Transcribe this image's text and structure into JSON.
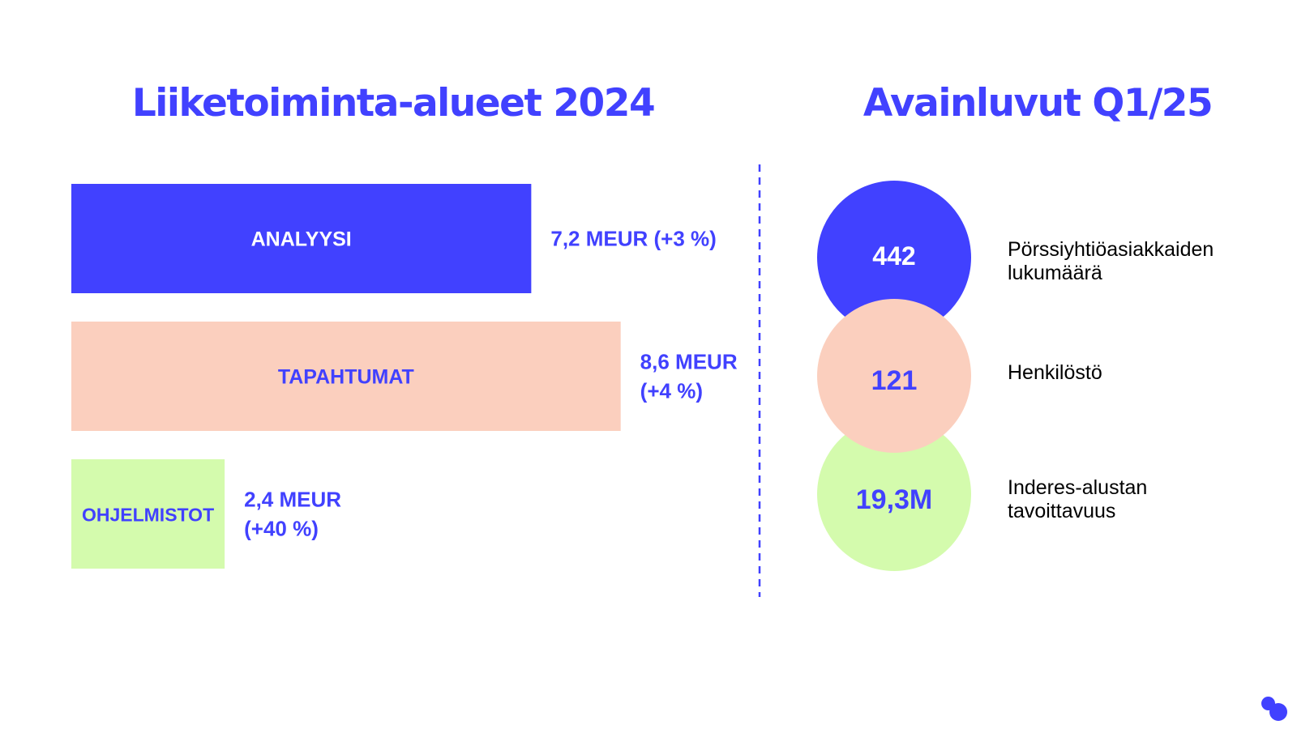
{
  "colors": {
    "accent": "#4141ff",
    "peach": "#fbcfbe",
    "lime": "#d4fbad",
    "text": "#000000",
    "white": "#ffffff"
  },
  "left_title": "Liiketoiminta-alueet 2024",
  "right_title": "Avainluvut Q1/25",
  "chart_data": [
    {
      "type": "bar",
      "orientation": "horizontal",
      "title": "Liiketoiminta-alueet 2024",
      "categories": [
        "ANALYYSI",
        "TAPAHTUMAT",
        "OHJELMISTOT"
      ],
      "values": [
        7.2,
        8.6,
        2.4
      ],
      "value_labels": [
        "7,2 MEUR (+3 %)",
        "8,6 MEUR\n(+4 %)",
        "2,4 MEUR\n(+40 %)"
      ],
      "unit": "MEUR",
      "growth_pct": [
        3,
        4,
        40
      ],
      "bar_colors": [
        "#4141ff",
        "#fbcfbe",
        "#d4fbad"
      ],
      "category_label_colors": [
        "#ffffff",
        "#4141ff",
        "#4141ff"
      ],
      "xlim": [
        0,
        9.5
      ],
      "grid": false
    }
  ],
  "key_figures": [
    {
      "value": "442",
      "label": "Pörssiyhtiöasiakkaiden\nlukumäärä",
      "circle_color": "#4141ff",
      "value_color": "#ffffff"
    },
    {
      "value": "121",
      "label": "Henkilöstö",
      "circle_color": "#fbcfbe",
      "value_color": "#4141ff"
    },
    {
      "value": "19,3M",
      "label": "Inderes-alustan\ntavoittavuus",
      "circle_color": "#d4fbad",
      "value_color": "#4141ff"
    }
  ],
  "logo_icon": "two-dots-logo-icon"
}
